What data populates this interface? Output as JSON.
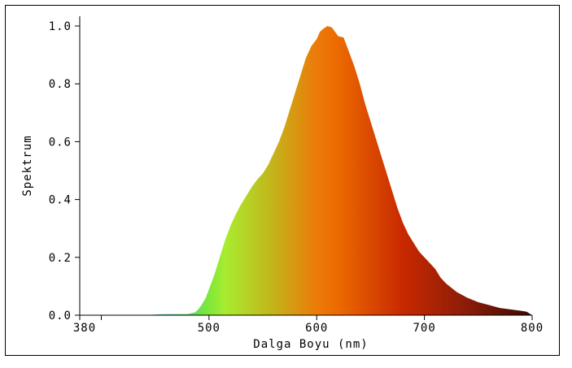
{
  "chart_data": {
    "type": "area",
    "xlabel": "Dalga Boyu (nm)",
    "ylabel": "Spektrum",
    "xlim": [
      380,
      800
    ],
    "ylim": [
      0,
      1.0
    ],
    "x_ticks": [
      380,
      500,
      600,
      700,
      800
    ],
    "y_ticks": [
      0.0,
      0.2,
      0.4,
      0.6,
      0.8,
      1.0
    ],
    "grid": false,
    "gradient_colors": [
      {
        "wavelength": 460,
        "color": "#46c8a0"
      },
      {
        "wavelength": 500,
        "color": "#7ee83a"
      },
      {
        "wavelength": 515,
        "color": "#a8ec30"
      },
      {
        "wavelength": 560,
        "color": "#c4b31a"
      },
      {
        "wavelength": 600,
        "color": "#ec7a08"
      },
      {
        "wavelength": 620,
        "color": "#ec6a00"
      },
      {
        "wavelength": 680,
        "color": "#c82800"
      },
      {
        "wavelength": 740,
        "color": "#8a1c08"
      },
      {
        "wavelength": 800,
        "color": "#3a0a02"
      }
    ],
    "x": [
      380,
      440,
      455,
      470,
      480,
      487,
      490,
      493,
      497,
      500,
      505,
      510,
      515,
      520,
      525,
      530,
      535,
      540,
      545,
      550,
      555,
      560,
      565,
      570,
      575,
      580,
      585,
      590,
      595,
      600,
      603,
      606,
      610,
      614,
      617,
      620,
      625,
      630,
      635,
      640,
      645,
      650,
      655,
      660,
      665,
      670,
      675,
      680,
      685,
      690,
      695,
      700,
      705,
      710,
      715,
      720,
      730,
      740,
      750,
      760,
      770,
      780,
      790,
      795,
      800
    ],
    "y": [
      0.0,
      0.0,
      0.003,
      0.004,
      0.004,
      0.01,
      0.02,
      0.035,
      0.06,
      0.09,
      0.14,
      0.2,
      0.26,
      0.31,
      0.35,
      0.385,
      0.415,
      0.445,
      0.47,
      0.49,
      0.52,
      0.56,
      0.6,
      0.65,
      0.71,
      0.77,
      0.83,
      0.89,
      0.93,
      0.955,
      0.98,
      0.99,
      1.0,
      0.995,
      0.98,
      0.965,
      0.96,
      0.91,
      0.86,
      0.8,
      0.73,
      0.67,
      0.61,
      0.55,
      0.49,
      0.43,
      0.37,
      0.32,
      0.28,
      0.25,
      0.22,
      0.2,
      0.18,
      0.16,
      0.13,
      0.11,
      0.08,
      0.06,
      0.045,
      0.035,
      0.025,
      0.02,
      0.015,
      0.012,
      0.0
    ]
  }
}
